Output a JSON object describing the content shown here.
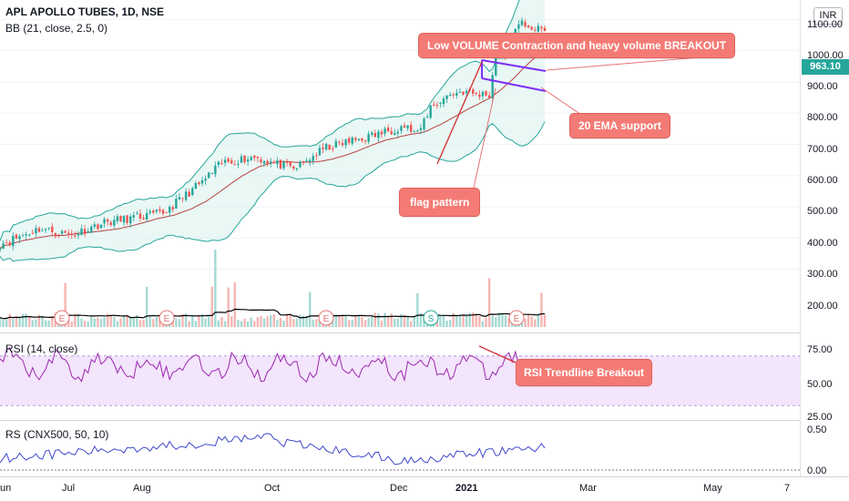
{
  "header": {
    "symbol_title": "APL APOLLO TUBES, 1D, NSE",
    "indicator": "BB (21, close, 2.5, 0)"
  },
  "currency": "INR",
  "last_price": "963.10",
  "colors": {
    "up": "#26a69a",
    "down": "#ef5350",
    "bb_band": "#26a69a",
    "bb_basis": "#b9413d",
    "rsi": "#9c27b0",
    "rs": "#3f48cc",
    "callout": "#f47b75",
    "annotation_line": "#d32f2f",
    "flag_channel": "#7b2ff7"
  },
  "panes": {
    "rsi_label": "RSI (14, close)",
    "rs_label": "RS (CNX500, 50, 10)"
  },
  "price_axis": [
    "1100.00",
    "1000.00",
    "900.00",
    "800.00",
    "700.00",
    "600.00",
    "500.00",
    "400.00",
    "300.00",
    "200.00"
  ],
  "rsi_axis": [
    "75.00",
    "50.00",
    "25.00"
  ],
  "rs_axis": [
    "0.50",
    "0.00"
  ],
  "time_axis": [
    {
      "label": "un",
      "bold": false
    },
    {
      "label": "Jul",
      "bold": false
    },
    {
      "label": "Aug",
      "bold": false
    },
    {
      "label": "Oct",
      "bold": false
    },
    {
      "label": "Dec",
      "bold": false
    },
    {
      "label": "2021",
      "bold": true
    },
    {
      "label": "Mar",
      "bold": false
    },
    {
      "label": "May",
      "bold": false
    },
    {
      "label": "7",
      "bold": false
    }
  ],
  "callouts": {
    "volume": "Low VOLUME Contraction and heavy volume BREAKOUT",
    "ema": "20 EMA support",
    "flag": "flag pattern",
    "rsi": "RSI Trendline Breakout"
  },
  "event_markers": [
    "E",
    "E",
    "E",
    "S",
    "E"
  ],
  "chart_data": {
    "type": "candlestick",
    "title": "APL APOLLO TUBES, 1D, NSE",
    "ylim": [
      150,
      1130
    ],
    "price_path": [
      {
        "x": "Jun 2020",
        "y": 310
      },
      {
        "x": "Jul 2020",
        "y": 340
      },
      {
        "x": "Aug 2020",
        "y": 390
      },
      {
        "x": "Sep 2020",
        "y": 540
      },
      {
        "x": "Oct 2020",
        "y": 560
      },
      {
        "x": "Nov 2020",
        "y": 640
      },
      {
        "x": "Dec 2020",
        "y": 640
      },
      {
        "x": "Jan 2021",
        "y": 990
      },
      {
        "x": "Feb 2021",
        "y": 963.1
      }
    ],
    "series": [
      {
        "name": "BB (21, close, 2.5, 0)",
        "kind": "bollinger"
      },
      {
        "name": "RSI (14, close)",
        "range": [
          25,
          100
        ]
      },
      {
        "name": "RS (CNX500, 50, 10)",
        "range": [
          -0.05,
          0.6
        ]
      }
    ]
  }
}
